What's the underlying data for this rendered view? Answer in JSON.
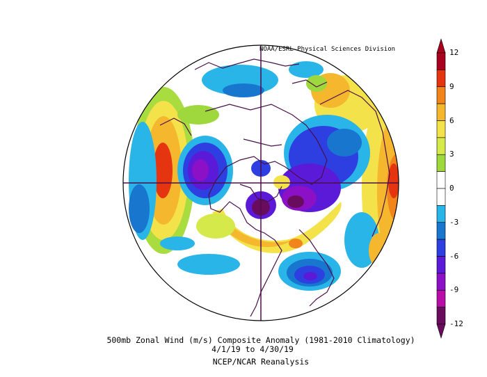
{
  "credit": "NOAA/ESRL Physical Sciences Division",
  "caption": {
    "line1": "500mb Zonal Wind (m/s) Composite Anomaly (1981-2010 Climatology)",
    "line2": "4/1/19  to 4/30/19",
    "line3": "NCEP/NCAR Reanalysis"
  },
  "colorbar": {
    "labels": [
      "12",
      "9",
      "6",
      "3",
      "0",
      "-3",
      "-6",
      "-9",
      "-12"
    ],
    "colors": [
      "#a8001e",
      "#e53510",
      "#f2841c",
      "#f5b72e",
      "#f3e24a",
      "#d6e94a",
      "#9ed83c",
      "#ffffff",
      "#ffffff",
      "#29b5e8",
      "#1876cf",
      "#2d3fe0",
      "#5b1ad8",
      "#8c10c6",
      "#b80ea8",
      "#6a0c5e"
    ]
  },
  "map": {
    "projection": "north polar stereographic",
    "variable": "zonal wind anomaly"
  }
}
